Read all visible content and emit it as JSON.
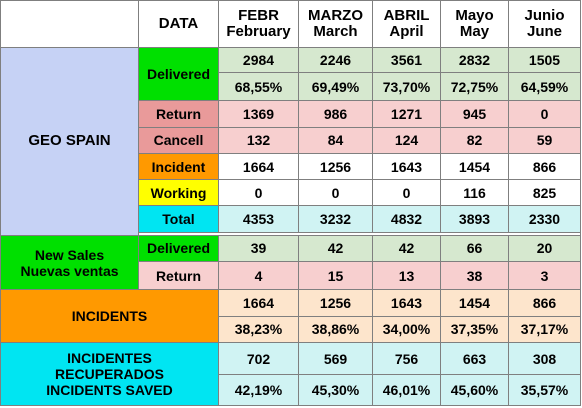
{
  "header": {
    "data_label": "DATA",
    "months": [
      {
        "line1": "FEBR",
        "line2": "February"
      },
      {
        "line1": "MARZO",
        "line2": "March"
      },
      {
        "line1": "ABRIL",
        "line2": "April"
      },
      {
        "line1": "Mayo",
        "line2": "May"
      },
      {
        "line1": "Junio",
        "line2": "June"
      }
    ]
  },
  "geo_spain": {
    "label": "GEO SPAIN",
    "delivered": {
      "label": "Delivered",
      "values": [
        "2984",
        "2246",
        "3561",
        "2832",
        "1505"
      ],
      "percents": [
        "68,55%",
        "69,49%",
        "73,70%",
        "72,75%",
        "64,59%"
      ]
    },
    "return": {
      "label": "Return",
      "values": [
        "1369",
        "986",
        "1271",
        "945",
        "0"
      ]
    },
    "cancell": {
      "label": "Cancell",
      "values": [
        "132",
        "84",
        "124",
        "82",
        "59"
      ]
    },
    "incident": {
      "label": "Incident",
      "values": [
        "1664",
        "1256",
        "1643",
        "1454",
        "866"
      ]
    },
    "working": {
      "label": "Working",
      "values": [
        "0",
        "0",
        "0",
        "116",
        "825"
      ]
    },
    "total": {
      "label": "Total",
      "values": [
        "4353",
        "3232",
        "4832",
        "3893",
        "2330"
      ]
    }
  },
  "new_sales": {
    "label_line1": "New Sales",
    "label_line2": "Nuevas ventas",
    "delivered": {
      "label": "Delivered",
      "values": [
        "39",
        "42",
        "42",
        "66",
        "20"
      ]
    },
    "return": {
      "label": "Return",
      "values": [
        "4",
        "15",
        "13",
        "38",
        "3"
      ]
    }
  },
  "incidents": {
    "label": "INCIDENTS",
    "values": [
      "1664",
      "1256",
      "1643",
      "1454",
      "866"
    ],
    "percents": [
      "38,23%",
      "38,86%",
      "34,00%",
      "37,35%",
      "37,17%"
    ]
  },
  "incidents_saved": {
    "label_line1": "INCIDENTES",
    "label_line2": "RECUPERADOS",
    "label_line3": "INCIDENTS SAVED",
    "values": [
      "702",
      "569",
      "756",
      "663",
      "308"
    ],
    "percents": [
      "42,19%",
      "45,30%",
      "46,01%",
      "45,60%",
      "35,57%"
    ]
  }
}
